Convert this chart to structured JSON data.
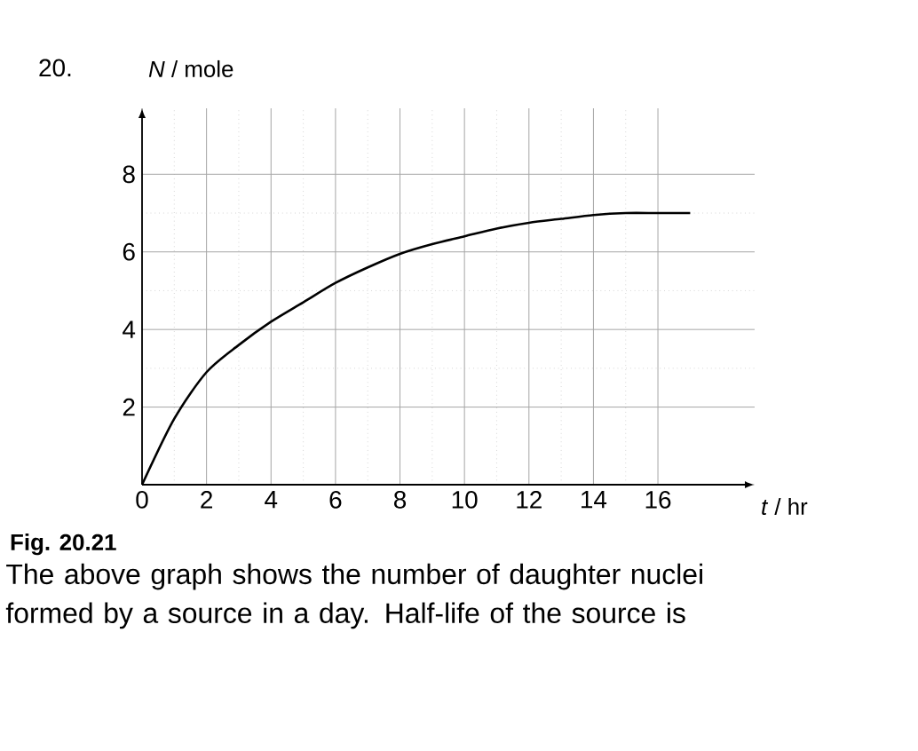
{
  "chart_data": {
    "type": "line",
    "xlabel": "*t* / hr",
    "ylabel": "*N* / mole",
    "annotations": [
      "20.",
      "Fig. 20.21",
      "The above graph shows the number of daughter nuclei formed by a source in a day. Half-life of the source is"
    ],
    "x": [
      0,
      1,
      2,
      3,
      4,
      5,
      6,
      7,
      8,
      9,
      10,
      11,
      12,
      13,
      14,
      15,
      16,
      17
    ],
    "series": [
      {
        "color": "#000000",
        "values": [
          0,
          1.7,
          2.9,
          3.6,
          4.2,
          4.7,
          5.2,
          5.6,
          5.95,
          6.2,
          6.4,
          6.6,
          6.75,
          6.85,
          6.95,
          7.0,
          7.0,
          7.0
        ]
      }
    ],
    "xlim": [
      0,
      19
    ],
    "ylim": [
      0,
      9.7
    ],
    "xticks": [
      0,
      2,
      4,
      6,
      8,
      10,
      12,
      14,
      16
    ],
    "yticks": [
      2,
      4,
      6,
      8
    ],
    "grid": true,
    "marker": "none",
    "line_style": "solid"
  }
}
